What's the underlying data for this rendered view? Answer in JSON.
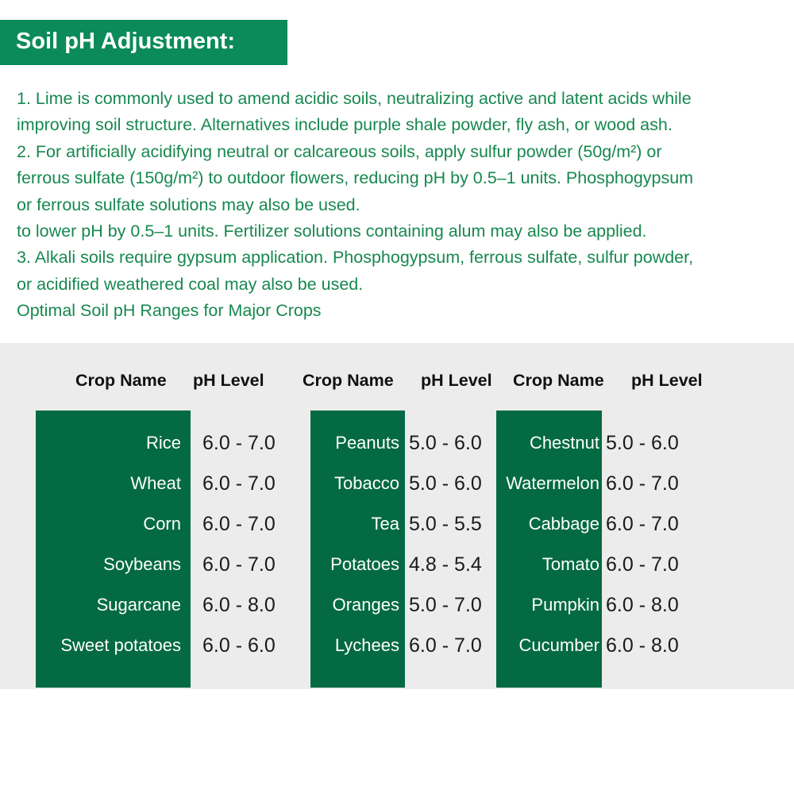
{
  "header": {
    "title": "Soil pH Adjustment:"
  },
  "paragraph": {
    "lines": [
      "1. Lime is commonly used to amend acidic soils, neutralizing active and latent acids while",
      "improving soil structure. Alternatives include purple shale powder, fly ash, or wood ash.",
      "2. For artificially acidifying neutral or calcareous soils, apply sulfur powder (50g/m²) or",
      "ferrous sulfate (150g/m²) to outdoor flowers, reducing pH by 0.5–1 units. Phosphogypsum",
      "or ferrous sulfate solutions may also be used.",
      "to lower pH by 0.5–1 units. Fertilizer solutions containing alum may also be applied.",
      "3. Alkali soils require gypsum application. Phosphogypsum, ferrous sulfate, sulfur powder,",
      "or acidified weathered coal may also be used.",
      "Optimal Soil pH Ranges for Major Crops"
    ]
  },
  "table": {
    "groups": [
      {
        "headers": [
          "Crop Name",
          "pH Level"
        ],
        "rows": [
          [
            "Rice",
            "6.0 - 7.0"
          ],
          [
            "Wheat",
            "6.0 - 7.0"
          ],
          [
            "Corn",
            "6.0 - 7.0"
          ],
          [
            "Soybeans",
            "6.0 - 7.0"
          ],
          [
            "Sugarcane",
            "6.0 - 8.0"
          ],
          [
            "Sweet potatoes",
            "6.0 - 6.0"
          ]
        ]
      },
      {
        "headers": [
          "Crop Name",
          "pH Level"
        ],
        "rows": [
          [
            "Peanuts",
            "5.0 - 6.0"
          ],
          [
            "Tobacco",
            "5.0 - 6.0"
          ],
          [
            "Tea",
            "5.0 - 5.5"
          ],
          [
            "Potatoes",
            "4.8 - 5.4"
          ],
          [
            "Oranges",
            "5.0 - 7.0"
          ],
          [
            "Lychees",
            "6.0 - 7.0"
          ]
        ]
      },
      {
        "headers": [
          "Crop Name",
          "pH Level"
        ],
        "rows": [
          [
            "Chestnut",
            "5.0 - 6.0"
          ],
          [
            "Watermelon",
            "6.0 - 7.0"
          ],
          [
            "Cabbage",
            "6.0 - 7.0"
          ],
          [
            "Tomato",
            "6.0 - 7.0"
          ],
          [
            "Pumpkin",
            "6.0 - 8.0"
          ],
          [
            "Cucumber",
            "6.0 - 8.0"
          ]
        ]
      }
    ]
  }
}
